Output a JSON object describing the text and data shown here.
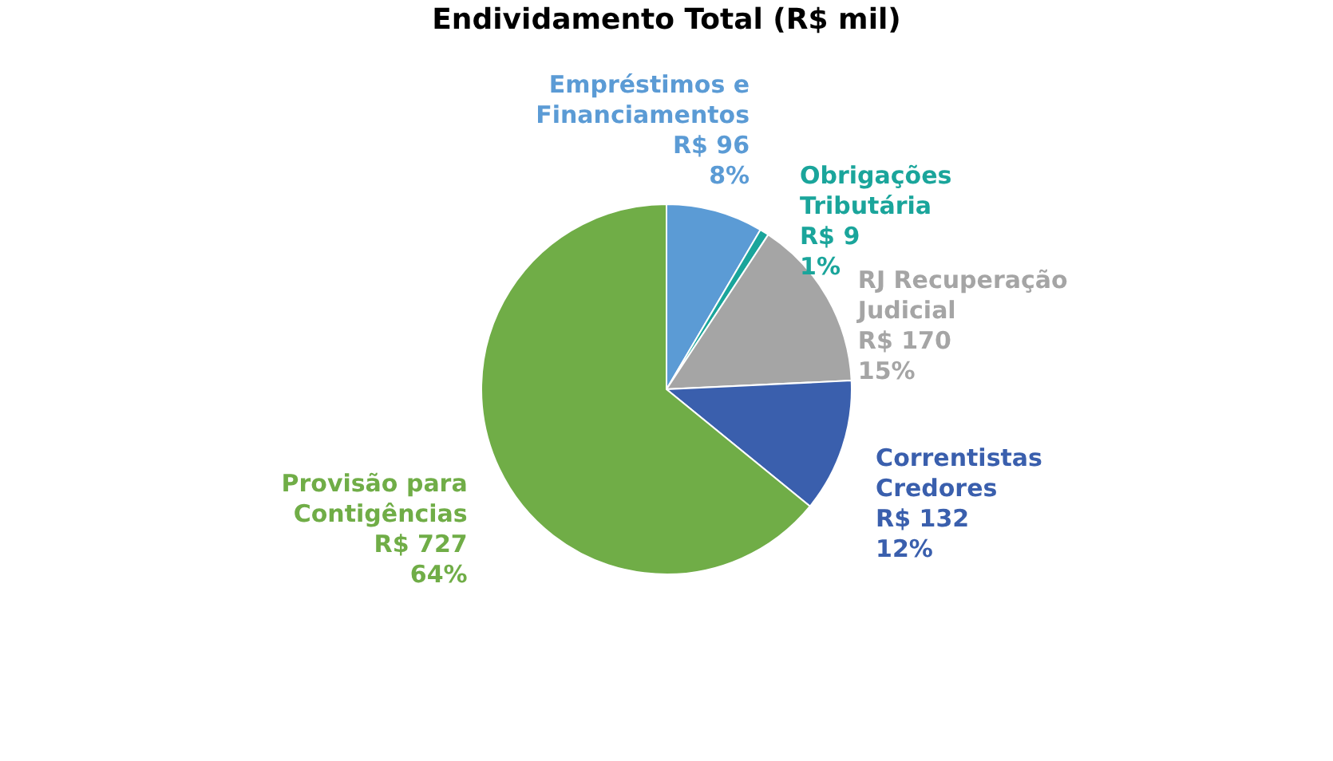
{
  "chart_data": {
    "type": "pie",
    "title": "Endividamento Total (R$ mil)",
    "categories": [
      "Empréstimos e Financiamentos",
      "Obrigações Tributária",
      "RJ Recuperação Judicial",
      "Correntistas Credores",
      "Provisão para Contigências"
    ],
    "values": [
      96,
      9,
      170,
      132,
      727
    ],
    "value_labels": [
      "R$ 96\n8%",
      "R$ 9\n1%",
      "R$ 170\n15%",
      "R$ 132\n12%",
      "R$ 727\n64%"
    ],
    "colors": [
      "#5b9bd5",
      "#1aa59b",
      "#a5a5a5",
      "#3a5fad",
      "#70ad47"
    ]
  }
}
